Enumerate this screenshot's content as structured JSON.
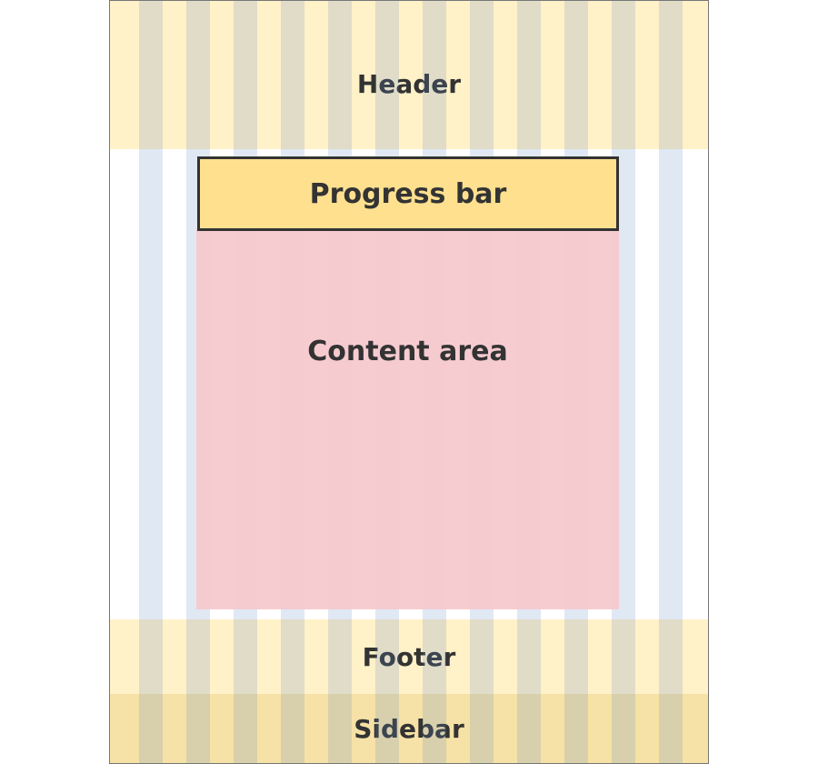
{
  "diagram": {
    "regions": {
      "header": "Header",
      "progress_bar": "Progress bar",
      "content_area": "Content area",
      "footer": "Footer",
      "sidebar": "Sidebar"
    }
  }
}
